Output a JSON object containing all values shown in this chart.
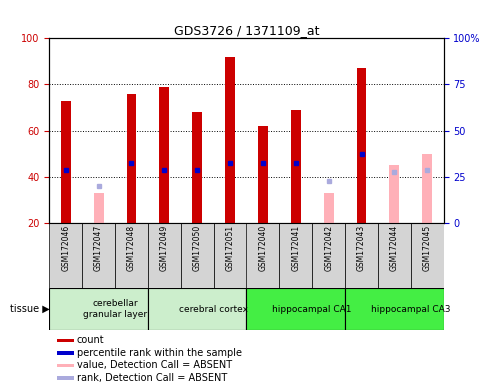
{
  "title": "GDS3726 / 1371109_at",
  "samples": [
    "GSM172046",
    "GSM172047",
    "GSM172048",
    "GSM172049",
    "GSM172050",
    "GSM172051",
    "GSM172040",
    "GSM172041",
    "GSM172042",
    "GSM172043",
    "GSM172044",
    "GSM172045"
  ],
  "count_values": [
    73,
    null,
    76,
    79,
    68,
    92,
    62,
    69,
    null,
    87,
    null,
    null
  ],
  "count_absent_values": [
    null,
    33,
    null,
    null,
    null,
    null,
    null,
    null,
    33,
    null,
    45,
    50
  ],
  "percentile_rank": [
    43,
    null,
    46,
    43,
    43,
    46,
    46,
    46,
    null,
    50,
    null,
    null
  ],
  "rank_absent": [
    null,
    36,
    null,
    null,
    null,
    null,
    null,
    null,
    38,
    null,
    42,
    43
  ],
  "tissues": [
    {
      "label": "cerebellar\ngranular layer",
      "color": "#cceecc",
      "start": 0,
      "end": 3
    },
    {
      "label": "cerebral cortex",
      "color": "#cceecc",
      "start": 3,
      "end": 6
    },
    {
      "label": "hippocampal CA1",
      "color": "#44ee44",
      "start": 6,
      "end": 9
    },
    {
      "label": "hippocampal CA3",
      "color": "#44ee44",
      "start": 9,
      "end": 12
    }
  ],
  "ylim_left": [
    20,
    100
  ],
  "ylim_right": [
    0,
    100
  ],
  "bar_width": 0.3,
  "count_color": "#cc0000",
  "absent_color": "#ffb0b8",
  "rank_color": "#0000cc",
  "rank_absent_color": "#aaaadd",
  "grid_color": "#000000",
  "bg_color": "#ffffff",
  "plot_bg": "#ffffff",
  "left_tick_color": "#cc0000",
  "right_tick_color": "#0000cc",
  "legend_items": [
    {
      "color": "#cc0000",
      "label": "count"
    },
    {
      "color": "#0000cc",
      "label": "percentile rank within the sample"
    },
    {
      "color": "#ffb0b8",
      "label": "value, Detection Call = ABSENT"
    },
    {
      "color": "#aaaadd",
      "label": "rank, Detection Call = ABSENT"
    }
  ]
}
